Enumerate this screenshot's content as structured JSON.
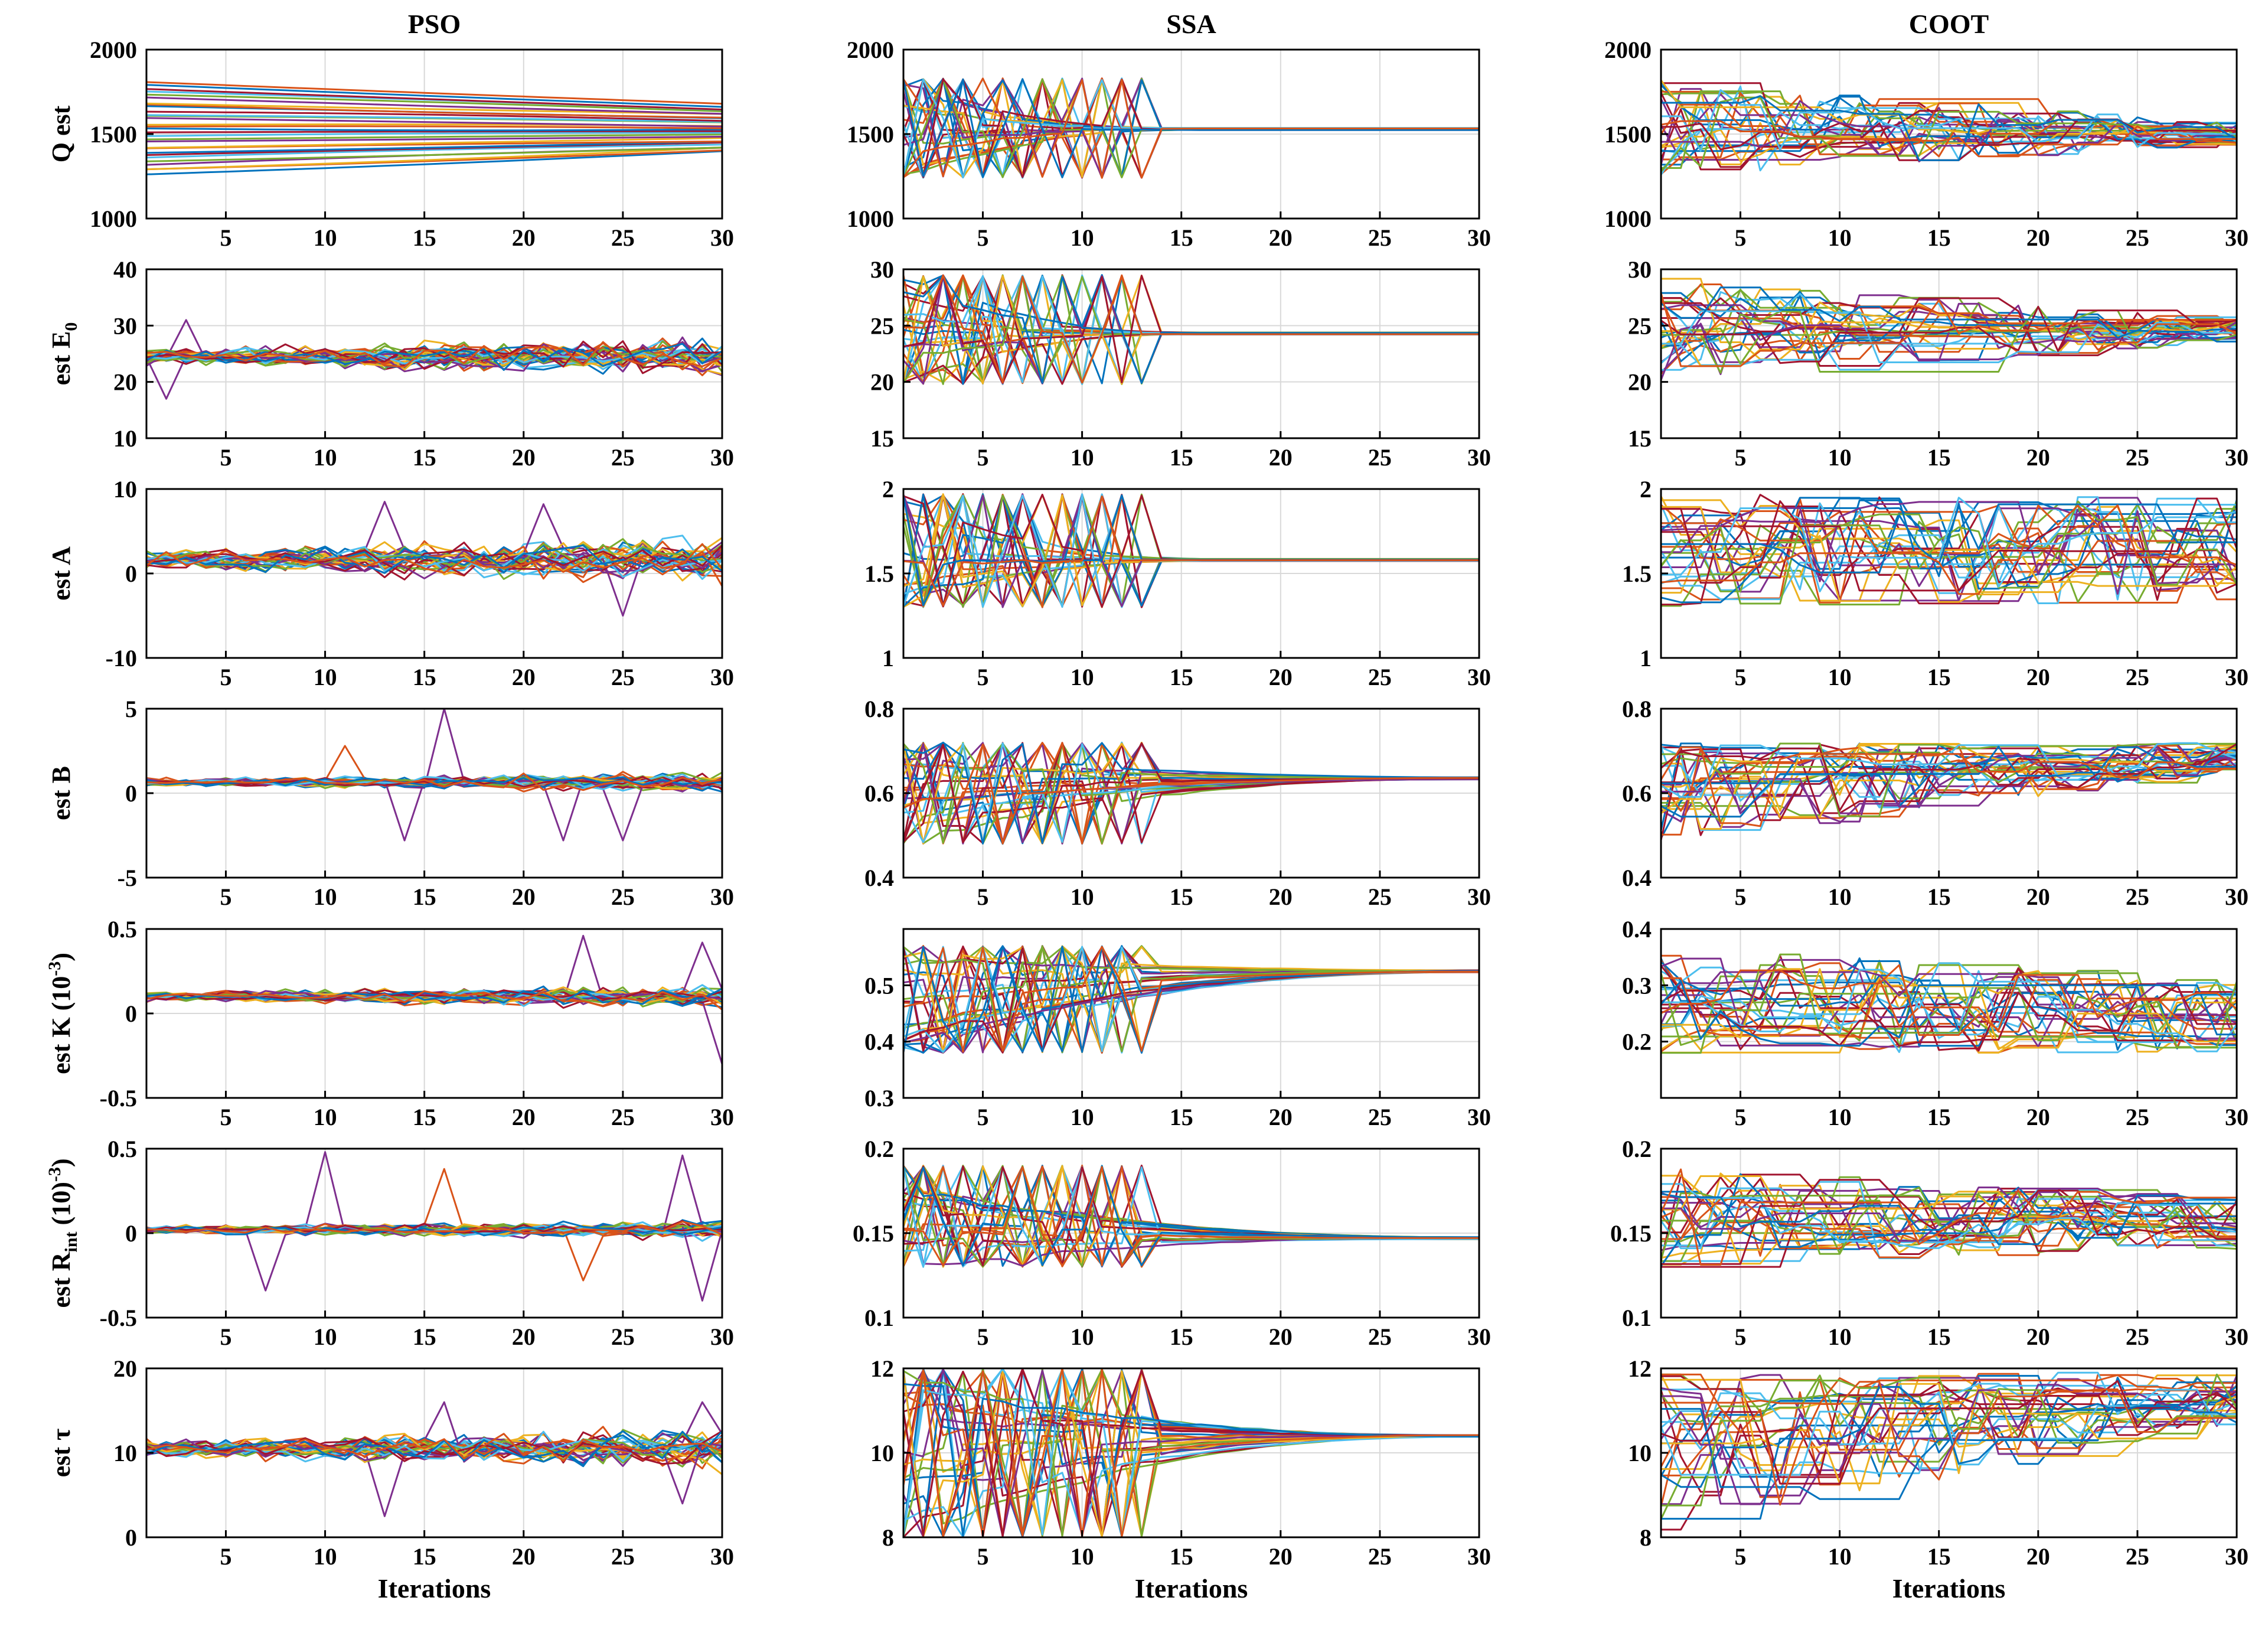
{
  "chart_data": {
    "type": "line",
    "description_columns": [
      "PSO",
      "SSA",
      "COOT"
    ],
    "x": {
      "min": 1,
      "max": 30,
      "ticks": [
        5,
        10,
        15,
        20,
        25,
        30
      ],
      "label": "Iterations",
      "grid": true
    },
    "column_titles": [
      "PSO",
      "SSA",
      "COOT"
    ],
    "rows": [
      {
        "key": "Q",
        "ylabel": {
          "main": "Q est",
          "sub": "",
          "sup": "",
          "tail": ""
        },
        "panels": [
          {
            "algorithm": "PSO",
            "ylim": [
              1000,
              2000
            ],
            "yticks": [
              "1000",
              "1500",
              "2000"
            ],
            "behavior": "slow",
            "start_range": [
              1260,
              1810
            ],
            "final_range": [
              1390,
              1670
            ],
            "final_center": 1530
          },
          {
            "algorithm": "SSA",
            "ylim": [
              1000,
              2000
            ],
            "yticks": [
              "1000",
              "1500",
              "2000"
            ],
            "behavior": "converge",
            "start_range": [
              1240,
              1830
            ],
            "final_center": 1530,
            "converge_iteration": 16
          },
          {
            "algorithm": "COOT",
            "ylim": [
              1000,
              2000
            ],
            "yticks": [
              "1000",
              "1500",
              "2000"
            ],
            "behavior": "steps",
            "start_range": [
              1250,
              1820
            ],
            "final_range": [
              1440,
              1560
            ],
            "final_center": 1500
          }
        ]
      },
      {
        "key": "E0",
        "ylabel": {
          "main": "est E",
          "sub": "0",
          "sup": "",
          "tail": ""
        },
        "panels": [
          {
            "algorithm": "PSO",
            "ylim": [
              10,
              40
            ],
            "yticks": [
              "10",
              "20",
              "30",
              "40"
            ],
            "behavior": "noisy",
            "center": 24.5,
            "amplitude": 3,
            "spikes": [
              [
                3,
                31
              ],
              [
                2,
                17
              ]
            ]
          },
          {
            "algorithm": "SSA",
            "ylim": [
              15,
              30
            ],
            "yticks": [
              "15",
              "20",
              "25",
              "30"
            ],
            "behavior": "converge",
            "start_range": [
              19.8,
              29.5
            ],
            "final_center": 24.3,
            "converge_iteration": 16
          },
          {
            "algorithm": "COOT",
            "ylim": [
              15,
              30
            ],
            "yticks": [
              "15",
              "20",
              "25",
              "30"
            ],
            "behavior": "steps",
            "start_range": [
              19.8,
              29.2
            ],
            "final_range": [
              23.7,
              25.5
            ],
            "final_center": 24.5
          }
        ]
      },
      {
        "key": "A",
        "ylabel": {
          "main": "est A",
          "sub": "",
          "sup": "",
          "tail": ""
        },
        "panels": [
          {
            "algorithm": "PSO",
            "ylim": [
              -10,
              10
            ],
            "yticks": [
              "-10",
              "0",
              "10"
            ],
            "behavior": "noisy",
            "center": 1.6,
            "amplitude": 2.5,
            "spikes": [
              [
                13,
                8.5
              ],
              [
                21,
                8.2
              ],
              [
                25,
                -5
              ]
            ]
          },
          {
            "algorithm": "SSA",
            "ylim": [
              1,
              2
            ],
            "yticks": [
              "1",
              "1.5",
              "2"
            ],
            "behavior": "converge",
            "start_range": [
              1.3,
              1.97
            ],
            "final_center": 1.58,
            "converge_iteration": 17
          },
          {
            "algorithm": "COOT",
            "ylim": [
              1,
              2
            ],
            "yticks": [
              "1",
              "1.5",
              "2"
            ],
            "behavior": "steps",
            "start_range": [
              1.3,
              1.97
            ],
            "final_range": [
              1.33,
              1.95
            ],
            "final_center": 1.6
          }
        ]
      },
      {
        "key": "B",
        "ylabel": {
          "main": "est B",
          "sub": "",
          "sup": "",
          "tail": ""
        },
        "panels": [
          {
            "algorithm": "PSO",
            "ylim": [
              -5,
              5
            ],
            "yticks": [
              "-5",
              "0",
              "5"
            ],
            "behavior": "noisy",
            "center": 0.65,
            "amplitude": 0.5,
            "spikes": [
              [
                16,
                5
              ],
              [
                14,
                -2.8
              ],
              [
                22,
                -2.8
              ],
              [
                25,
                -2.8
              ],
              [
                11,
                2.8
              ]
            ]
          },
          {
            "algorithm": "SSA",
            "ylim": [
              0.4,
              0.8
            ],
            "yticks": [
              "0.4",
              "0.6",
              "0.8"
            ],
            "behavior": "converge",
            "start_range": [
              0.48,
              0.72
            ],
            "final_center": 0.635,
            "converge_iteration": 30
          },
          {
            "algorithm": "COOT",
            "ylim": [
              0.4,
              0.8
            ],
            "yticks": [
              "0.4",
              "0.6",
              "0.8"
            ],
            "behavior": "steps",
            "start_range": [
              0.48,
              0.72
            ],
            "final_range": [
              0.65,
              0.72
            ],
            "final_center": 0.69
          }
        ]
      },
      {
        "key": "K",
        "ylabel": {
          "main": "est K (10",
          "sub": "",
          "sup": "-3",
          "tail": ")"
        },
        "panels": [
          {
            "algorithm": "PSO",
            "ylim": [
              -0.5,
              0.5
            ],
            "yticks": [
              "-0.5",
              "0",
              "0.5"
            ],
            "behavior": "noisy",
            "center": 0.1,
            "amplitude": 0.06,
            "spikes": [
              [
                23,
                0.46
              ],
              [
                30,
                -0.3
              ],
              [
                29,
                0.42
              ]
            ]
          },
          {
            "algorithm": "SSA",
            "ylim": [
              0.3,
              0.6
            ],
            "yticks": [
              "0.3",
              "0.4",
              "0.5"
            ],
            "behavior": "converge",
            "start_range": [
              0.38,
              0.57
            ],
            "final_center": 0.525,
            "converge_iteration": 30
          },
          {
            "algorithm": "COOT",
            "ylim": [
              0.1,
              0.4
            ],
            "yticks": [
              "0.2",
              "0.3",
              "0.4"
            ],
            "behavior": "steps",
            "start_range": [
              0.18,
              0.37
            ],
            "final_range": [
              0.18,
              0.31
            ],
            "final_center": 0.23
          }
        ]
      },
      {
        "key": "Rint",
        "ylabel": {
          "main": "est R",
          "sub": "int",
          "sup": "",
          "tail": " (10-3)"
        },
        "panels": [
          {
            "algorithm": "PSO",
            "ylim": [
              -0.5,
              0.5
            ],
            "yticks": [
              "-0.5",
              "0",
              "0.5"
            ],
            "behavior": "noisy",
            "center": 0.02,
            "amplitude": 0.05,
            "spikes": [
              [
                10,
                0.48
              ],
              [
                7,
                -0.34
              ],
              [
                28,
                0.46
              ],
              [
                29,
                -0.4
              ],
              [
                16,
                0.38
              ],
              [
                23,
                -0.28
              ]
            ]
          },
          {
            "algorithm": "SSA",
            "ylim": [
              0.1,
              0.2
            ],
            "yticks": [
              "0.1",
              "0.15",
              "0.2"
            ],
            "behavior": "converge",
            "start_range": [
              0.13,
              0.19
            ],
            "final_center": 0.147,
            "converge_iteration": 30
          },
          {
            "algorithm": "COOT",
            "ylim": [
              0.1,
              0.2
            ],
            "yticks": [
              "0.1",
              "0.15",
              "0.2"
            ],
            "behavior": "steps",
            "start_range": [
              0.13,
              0.19
            ],
            "final_range": [
              0.14,
              0.17
            ],
            "final_center": 0.152
          }
        ]
      },
      {
        "key": "tau",
        "ylabel": {
          "main": "est τ",
          "sub": "",
          "sup": "",
          "tail": ""
        },
        "panels": [
          {
            "algorithm": "PSO",
            "ylim": [
              0,
              20
            ],
            "yticks": [
              "0",
              "10",
              "20"
            ],
            "behavior": "noisy",
            "center": 10.5,
            "amplitude": 2.2,
            "spikes": [
              [
                13,
                2.5
              ],
              [
                16,
                16
              ],
              [
                29,
                16
              ],
              [
                28,
                4
              ]
            ]
          },
          {
            "algorithm": "SSA",
            "ylim": [
              8,
              12
            ],
            "yticks": [
              "8",
              "10",
              "12"
            ],
            "behavior": "converge",
            "start_range": [
              8,
              12
            ],
            "final_center": 10.4,
            "converge_iteration": 30
          },
          {
            "algorithm": "COOT",
            "ylim": [
              8,
              12
            ],
            "yticks": [
              "8",
              "10",
              "12"
            ],
            "behavior": "steps",
            "start_range": [
              8.1,
              11.9
            ],
            "final_range": [
              10.7,
              11.9
            ],
            "final_center": 11.4
          }
        ]
      }
    ],
    "n_particles": 30,
    "palette": [
      "#0072BD",
      "#D95319",
      "#EDB120",
      "#7E2F8E",
      "#77AC30",
      "#4DBEEE",
      "#A2142F"
    ]
  }
}
